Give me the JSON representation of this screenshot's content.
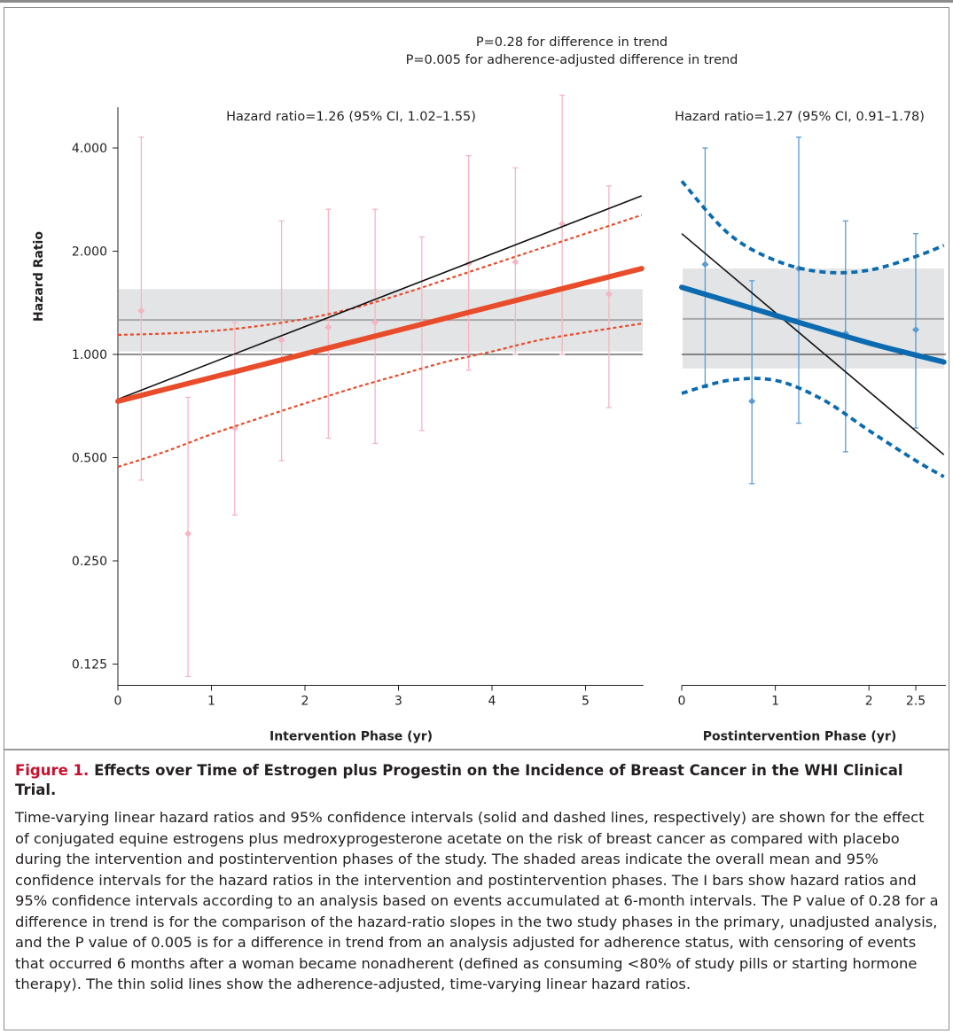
{
  "chart_data": {
    "type": "line",
    "y_scale": "log2",
    "ylabel": "Hazard Ratio",
    "yticks": [
      "0.125",
      "0.250",
      "0.500",
      "1.000",
      "2.000",
      "4.000"
    ],
    "ytick_values": [
      0.125,
      0.25,
      0.5,
      1,
      2,
      4
    ],
    "annotation_top": [
      "P=0.28 for difference in trend",
      "P=0.005 for adherence-adjusted difference in trend"
    ],
    "panels": [
      {
        "name": "intervention",
        "xlabel": "Intervention Phase (yr)",
        "xticks": [
          "0",
          "1",
          "2",
          "3",
          "4",
          "5"
        ],
        "xtick_values": [
          0,
          1,
          2,
          3,
          4,
          5
        ],
        "xlim": [
          0,
          5.6
        ],
        "hazard_label": "Hazard ratio=1.26 (95% CI, 1.02–1.55)",
        "colors": {
          "main": "#e84c2b",
          "bars": "#f4b6c2",
          "adherence": "#111111"
        },
        "mean_band": {
          "mean": 1.26,
          "lower": 1.02,
          "upper": 1.55
        },
        "fit_line": {
          "x": [
            0,
            5.6
          ],
          "y": [
            0.73,
            1.78
          ]
        },
        "ci_upper": {
          "x": [
            0,
            0.5,
            1,
            1.5,
            2,
            2.5,
            3,
            3.5,
            4,
            4.5,
            5,
            5.6
          ],
          "y": [
            1.14,
            1.15,
            1.17,
            1.21,
            1.27,
            1.36,
            1.49,
            1.65,
            1.83,
            2.03,
            2.25,
            2.55
          ]
        },
        "ci_lower": {
          "x": [
            0,
            0.5,
            1,
            1.5,
            2,
            2.5,
            3,
            3.5,
            4,
            4.5,
            5,
            5.6
          ],
          "y": [
            0.47,
            0.52,
            0.585,
            0.65,
            0.72,
            0.795,
            0.87,
            0.95,
            1.02,
            1.1,
            1.16,
            1.23
          ]
        },
        "adherence_line": {
          "x": [
            0,
            5.6
          ],
          "y": [
            0.74,
            2.9
          ]
        },
        "points": [
          {
            "x": 0.25,
            "y": 1.34,
            "lo": 0.43,
            "hi": 4.3
          },
          {
            "x": 0.75,
            "y": 0.3,
            "lo": 0.115,
            "hi": 0.75
          },
          {
            "x": 1.25,
            "y": 0.61,
            "lo": 0.34,
            "hi": 1.24
          },
          {
            "x": 1.75,
            "y": 1.1,
            "lo": 0.49,
            "hi": 2.45
          },
          {
            "x": 2.25,
            "y": 1.2,
            "lo": 0.57,
            "hi": 2.65
          },
          {
            "x": 2.75,
            "y": 1.24,
            "lo": 0.55,
            "hi": 2.65
          },
          {
            "x": 3.25,
            "y": 1.23,
            "lo": 0.6,
            "hi": 2.2
          },
          {
            "x": 3.75,
            "y": 1.84,
            "lo": 0.9,
            "hi": 3.8
          },
          {
            "x": 4.25,
            "y": 1.86,
            "lo": 1.0,
            "hi": 3.5
          },
          {
            "x": 4.75,
            "y": 2.4,
            "lo": 1.0,
            "hi": 5.7
          },
          {
            "x": 5.25,
            "y": 1.5,
            "lo": 0.7,
            "hi": 3.1
          }
        ]
      },
      {
        "name": "postintervention",
        "xlabel": "Postintervention Phase (yr)",
        "xticks": [
          "0",
          "1",
          "2",
          "2.5"
        ],
        "xtick_values": [
          0,
          1,
          2,
          2.5
        ],
        "xlim": [
          0,
          2.8
        ],
        "hazard_label": "Hazard ratio=1.27 (95% CI, 0.91–1.78)",
        "colors": {
          "main": "#0c6bb0",
          "bars": "#5b9bd1",
          "adherence": "#111111"
        },
        "mean_band": {
          "mean": 1.27,
          "lower": 0.91,
          "upper": 1.78
        },
        "fit_line": {
          "x": [
            0,
            1.0,
            2.0,
            2.8
          ],
          "y": [
            1.57,
            1.3,
            1.08,
            0.95
          ]
        },
        "ci_upper": {
          "x": [
            0,
            0.5,
            1.0,
            1.5,
            2.0,
            2.5,
            2.8
          ],
          "y": [
            3.2,
            2.25,
            1.88,
            1.74,
            1.76,
            1.93,
            2.08
          ]
        },
        "ci_lower": {
          "x": [
            0,
            0.5,
            1.0,
            1.5,
            2.0,
            2.5,
            2.8
          ],
          "y": [
            0.77,
            0.84,
            0.84,
            0.74,
            0.6,
            0.49,
            0.44
          ]
        },
        "adherence_line": {
          "x": [
            0,
            2.8
          ],
          "y": [
            2.25,
            0.51
          ]
        },
        "points": [
          {
            "x": 0.25,
            "y": 1.83,
            "lo": 0.8,
            "hi": 4.0
          },
          {
            "x": 0.75,
            "y": 0.73,
            "lo": 0.42,
            "hi": 1.64
          },
          {
            "x": 1.25,
            "y": 1.78,
            "lo": 0.63,
            "hi": 4.3
          },
          {
            "x": 1.75,
            "y": 1.15,
            "lo": 0.52,
            "hi": 2.45
          },
          {
            "x": 2.5,
            "y": 1.18,
            "lo": 0.61,
            "hi": 2.25
          }
        ]
      }
    ]
  },
  "caption": {
    "figure_label": "Figure 1.",
    "title": "Effects over Time of Estrogen plus Progestin on the Incidence of Breast Cancer in the WHI Clinical Trial.",
    "body": "Time-varying linear hazard ratios and 95% confidence intervals (solid and dashed lines, respectively) are shown for the effect of conjugated equine estrogens plus medroxyprogesterone acetate on the risk of breast cancer as compared with placebo during the intervention and postintervention phases of the study. The shaded areas indicate the overall mean and 95% confidence intervals for the hazard ratios in the intervention and postintervention phases. The I bars show hazard ratios and 95% confidence intervals according to an analysis based on events accumulated at 6-month intervals. The P value of 0.28 for a difference in trend is for the comparison of the hazard-ratio slopes in the two study phases in the primary, unadjusted analysis, and the P value of 0.005 is for a difference in trend from an analysis adjusted for adherence status, with censoring of events that occurred 6 months after a woman became nonadherent (defined as consuming <80% of study pills or starting hormone therapy). The thin solid lines show the adherence-adjusted, time-varying linear hazard ratios."
  }
}
